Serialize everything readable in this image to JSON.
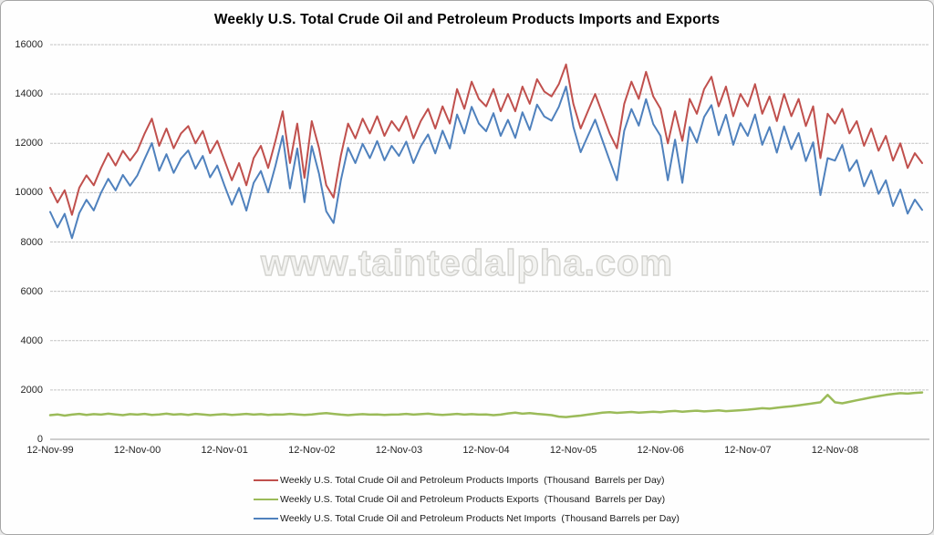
{
  "chart_data": {
    "type": "line",
    "title": "Weekly U.S. Total Crude Oil and Petroleum Products Imports and Exports",
    "watermark": "www.taintedalpha.com",
    "grid": "horizontal",
    "legend_position": "bottom-center",
    "ylim": [
      0,
      16000
    ],
    "y_ticks": [
      0,
      2000,
      4000,
      6000,
      8000,
      10000,
      12000,
      14000,
      16000
    ],
    "x_tick_labels": [
      "12-Nov-99",
      "12-Nov-00",
      "12-Nov-01",
      "12-Nov-02",
      "12-Nov-03",
      "12-Nov-04",
      "12-Nov-05",
      "12-Nov-06",
      "12-Nov-07",
      "12-Nov-08"
    ],
    "x_ticks_every_n_points": 12,
    "series": [
      {
        "name": "Weekly U.S. Total Crude Oil and Petroleum Products Imports  (Thousand  Barrels per Day)",
        "color": "#C0504D",
        "width": 2,
        "values": [
          10200,
          9600,
          10100,
          9100,
          10200,
          10700,
          10300,
          11000,
          11600,
          11100,
          11700,
          11300,
          11700,
          12400,
          13000,
          11900,
          12600,
          11800,
          12400,
          12700,
          12000,
          12500,
          11600,
          12100,
          11300,
          10500,
          11200,
          10300,
          11400,
          11900,
          11000,
          12100,
          13300,
          11200,
          12800,
          10600,
          12900,
          11800,
          10300,
          9800,
          11500,
          12800,
          12200,
          13000,
          12400,
          13100,
          12300,
          12900,
          12500,
          13100,
          12200,
          12900,
          13400,
          12600,
          13500,
          12800,
          14200,
          13400,
          14500,
          13800,
          13500,
          14200,
          13300,
          14000,
          13300,
          14300,
          13600,
          14600,
          14100,
          13900,
          14400,
          15200,
          13600,
          12600,
          13300,
          14000,
          13200,
          12400,
          11800,
          13600,
          14500,
          13800,
          14900,
          13900,
          13400,
          12000,
          13300,
          12100,
          13800,
          13200,
          14200,
          14700,
          13500,
          14300,
          13100,
          14000,
          13500,
          14400,
          13200,
          13900,
          12900,
          14000,
          13100,
          13800,
          12700,
          13500,
          11400,
          13200,
          12800,
          13400,
          12400,
          12900,
          11900,
          12600,
          11700,
          12300,
          11300,
          12000,
          11000,
          11600,
          11200
        ]
      },
      {
        "name": "Weekly U.S. Total Crude Oil and Petroleum Products Exports  (Thousand  Barrels per Day)",
        "color": "#9BBB59",
        "width": 2.5,
        "values": [
          980,
          1010,
          960,
          1000,
          1030,
          990,
          1020,
          1000,
          1040,
          1010,
          980,
          1020,
          1000,
          1030,
          990,
          1010,
          1040,
          1000,
          1020,
          990,
          1030,
          1010,
          980,
          1000,
          1020,
          990,
          1010,
          1030,
          1000,
          1020,
          990,
          1010,
          1000,
          1030,
          1010,
          990,
          1010,
          1040,
          1060,
          1030,
          1000,
          980,
          1000,
          1020,
          1000,
          1010,
          990,
          1000,
          1010,
          1030,
          1000,
          1020,
          1040,
          1010,
          990,
          1010,
          1030,
          1000,
          1020,
          1000,
          1010,
          980,
          1000,
          1050,
          1080,
          1040,
          1060,
          1030,
          1010,
          980,
          920,
          900,
          930,
          960,
          1000,
          1040,
          1080,
          1100,
          1070,
          1090,
          1110,
          1080,
          1100,
          1120,
          1100,
          1130,
          1150,
          1120,
          1140,
          1160,
          1130,
          1150,
          1170,
          1140,
          1160,
          1180,
          1200,
          1230,
          1260,
          1240,
          1280,
          1310,
          1340,
          1380,
          1420,
          1460,
          1500,
          1800,
          1500,
          1460,
          1520,
          1580,
          1640,
          1700,
          1750,
          1800,
          1840,
          1870,
          1850,
          1880,
          1900
        ]
      },
      {
        "name": "Weekly U.S. Total Crude Oil and Petroleum Products Net Imports  (Thousand Barrels per Day)",
        "color": "#4F81BD",
        "width": 2,
        "values": [
          9220,
          8590,
          9140,
          8150,
          9170,
          9710,
          9280,
          10000,
          10560,
          10090,
          10720,
          10280,
          10700,
          11370,
          12010,
          10890,
          11560,
          10800,
          11380,
          11710,
          10970,
          11490,
          10620,
          11100,
          10280,
          9510,
          10190,
          9270,
          10400,
          10880,
          10010,
          11090,
          12300,
          10170,
          11790,
          9610,
          11890,
          10760,
          9240,
          8770,
          10500,
          11820,
          11200,
          11980,
          11400,
          12090,
          11310,
          11900,
          11490,
          12070,
          11200,
          11880,
          12360,
          11590,
          12510,
          11790,
          13170,
          12400,
          13480,
          12800,
          12490,
          13220,
          12300,
          12950,
          12220,
          13260,
          12540,
          13570,
          13090,
          12920,
          13480,
          14300,
          12670,
          11640,
          12300,
          12960,
          12120,
          11300,
          10500,
          12510,
          13390,
          12720,
          13790,
          12780,
          12300,
          10500,
          12150,
          10400,
          12660,
          12040,
          13070,
          13550,
          12330,
          13160,
          11940,
          12820,
          12300,
          13170,
          11940,
          12660,
          11620,
          12690,
          11760,
          12420,
          11280,
          12040,
          9900,
          11400,
          11300,
          11940,
          10880,
          11320,
          10260,
          10900,
          9950,
          10500,
          9460,
          10130,
          9150,
          9720,
          9300
        ]
      }
    ]
  }
}
